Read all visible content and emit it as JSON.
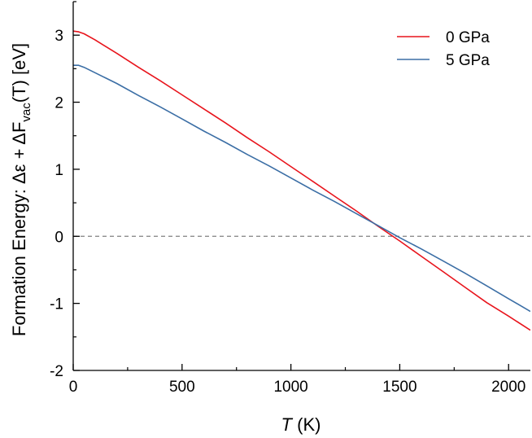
{
  "chart_data": {
    "type": "line",
    "xlabel_italic": "T",
    "xlabel_rest": " (K)",
    "ylabel_parts": {
      "pre": "Formation Energy: Δε + ΔF",
      "sub": "vac",
      "post": "(T) [eV]"
    },
    "xlim": [
      0,
      2100
    ],
    "ylim": [
      -2,
      3.5
    ],
    "x_ticks": [
      0,
      500,
      1000,
      1500,
      2000
    ],
    "x_tick_labels": [
      "0",
      "500",
      "1000",
      "1500",
      "2000"
    ],
    "y_ticks": [
      -2,
      -1,
      0,
      1,
      2,
      3
    ],
    "y_tick_labels": [
      "-2",
      "-1",
      "0",
      "1",
      "2",
      "3"
    ],
    "reference_line": {
      "y": 0,
      "style": "dashed",
      "color": "#808080"
    },
    "legend_position": "top-right",
    "grid": false,
    "series": [
      {
        "name": "0 GPa",
        "color": "#e8141c",
        "x": [
          0,
          25,
          50,
          100,
          150,
          200,
          300,
          400,
          500,
          600,
          700,
          800,
          900,
          1000,
          1100,
          1200,
          1300,
          1400,
          1500,
          1600,
          1700,
          1800,
          1900,
          2000,
          2100
        ],
        "y": [
          3.06,
          3.05,
          3.02,
          2.93,
          2.83,
          2.73,
          2.52,
          2.32,
          2.11,
          1.9,
          1.69,
          1.47,
          1.26,
          1.04,
          0.82,
          0.6,
          0.38,
          0.15,
          -0.07,
          -0.3,
          -0.53,
          -0.76,
          -0.99,
          -1.19,
          -1.4
        ]
      },
      {
        "name": "5 GPa",
        "color": "#3b6ea5",
        "x": [
          0,
          25,
          50,
          100,
          150,
          200,
          300,
          400,
          500,
          600,
          700,
          800,
          900,
          1000,
          1100,
          1200,
          1300,
          1400,
          1500,
          1600,
          1700,
          1800,
          1900,
          2000,
          2100
        ],
        "y": [
          2.55,
          2.55,
          2.52,
          2.44,
          2.36,
          2.28,
          2.1,
          1.93,
          1.75,
          1.57,
          1.4,
          1.22,
          1.05,
          0.87,
          0.69,
          0.52,
          0.34,
          0.16,
          -0.02,
          -0.19,
          -0.37,
          -0.55,
          -0.74,
          -0.93,
          -1.12
        ]
      }
    ]
  }
}
